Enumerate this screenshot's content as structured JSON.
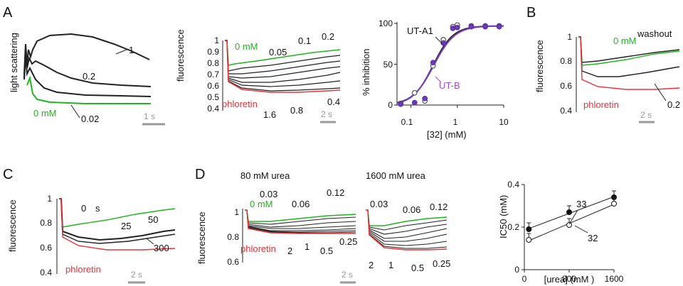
{
  "colors": {
    "black": "#222222",
    "green": "#1fb51f",
    "red": "#e8333a",
    "purple": "#7a3fc4",
    "scalebar": "#999999"
  },
  "panels": {
    "a": "A",
    "b": "B",
    "c": "C",
    "d": "D"
  },
  "panel_a": {
    "ylabel": "light scattering",
    "curve_labels": [
      "1",
      "0.2",
      "0.02",
      "0 mM"
    ],
    "scale": "1 s"
  },
  "panel_a2": {
    "ylabel": "fluorescence",
    "yticks": [
      "1",
      "0.9",
      "0.8",
      "0.7",
      "0.6",
      "0.5",
      "0.4"
    ],
    "green_label": "0 mM",
    "red_label": "phloretin",
    "top_labels": [
      "0.05",
      "0.1",
      "0.2"
    ],
    "bottom_labels": [
      "0.4",
      "0.8",
      "1.6"
    ],
    "scale": "2 s"
  },
  "panel_a3": {
    "ylabel": "% inhibition",
    "xlabel": "[32] (mM)",
    "yticks": [
      "100",
      "50",
      "0"
    ],
    "xticks": [
      "0.1",
      "1",
      "10"
    ],
    "labels": {
      "ut_a1": "UT-A1",
      "ut_b": "UT-B"
    }
  },
  "panel_b": {
    "ylabel": "fluorescence",
    "yticks": [
      "1",
      "0.8",
      "0.6",
      "0.4"
    ],
    "green_label": "0 mM",
    "washout_label": "washout",
    "red_label": "phloretin",
    "value_label": "0.2",
    "scale": "2 s"
  },
  "panel_c": {
    "ylabel": "fluorescence",
    "yticks": [
      "1",
      "0.8",
      "0.6",
      "0.4"
    ],
    "labels": [
      "0",
      "s",
      "25",
      "50",
      "300"
    ],
    "red_label": "phloretin",
    "scale": "2 s"
  },
  "panel_d": {
    "ylabel": "fluorescence",
    "yticks": [
      "1",
      "0.8",
      "0.6"
    ],
    "left_title": "80 mM urea",
    "right_title": "1600 mM urea",
    "left_top": [
      "0.03",
      "0.06",
      "0.12"
    ],
    "left_bottom": [
      "2",
      "1",
      "0.5",
      "0.25"
    ],
    "right_top": [
      "0.03",
      "0.06",
      "0.12"
    ],
    "right_bottom": [
      "2",
      "1",
      "0.5",
      "0.25"
    ],
    "green_label": "0 mM",
    "red_label": "phloretin",
    "scale": "2 s"
  },
  "chart_data": [
    {
      "type": "scatter",
      "xlabel": "[32] (mM)",
      "ylabel": "% inhibition",
      "xscale": "log",
      "xlim": [
        0.05,
        10
      ],
      "ylim": [
        0,
        100
      ],
      "series": [
        {
          "name": "UT-A1",
          "marker": "open-circle",
          "x": [
            0.06,
            0.12,
            0.2,
            0.3,
            0.5,
            0.8,
            1.0,
            2.0,
            4.0,
            8.0
          ],
          "y": [
            2,
            15,
            5,
            48,
            80,
            96,
            98,
            97,
            97,
            97
          ]
        },
        {
          "name": "UT-B",
          "marker": "filled-circle",
          "x": [
            0.06,
            0.12,
            0.2,
            0.3,
            0.5,
            0.8,
            1.0,
            2.0,
            4.0,
            8.0
          ],
          "y": [
            1,
            3,
            8,
            52,
            76,
            94,
            95,
            96,
            96,
            96
          ]
        }
      ]
    },
    {
      "type": "line",
      "xlabel": "[urea] (mM )",
      "ylabel": "IC50 (mM)",
      "xticks": [
        "0",
        "800",
        "1600"
      ],
      "yticks": [
        "0",
        "0.2",
        "0.4"
      ],
      "xlim": [
        0,
        1600
      ],
      "ylim": [
        0,
        0.4
      ],
      "series": [
        {
          "name": "33",
          "marker": "filled-circle",
          "x": [
            80,
            800,
            1600
          ],
          "y": [
            0.19,
            0.27,
            0.34
          ]
        },
        {
          "name": "32",
          "marker": "open-circle",
          "x": [
            80,
            800,
            1600
          ],
          "y": [
            0.14,
            0.21,
            0.31
          ]
        }
      ]
    }
  ]
}
